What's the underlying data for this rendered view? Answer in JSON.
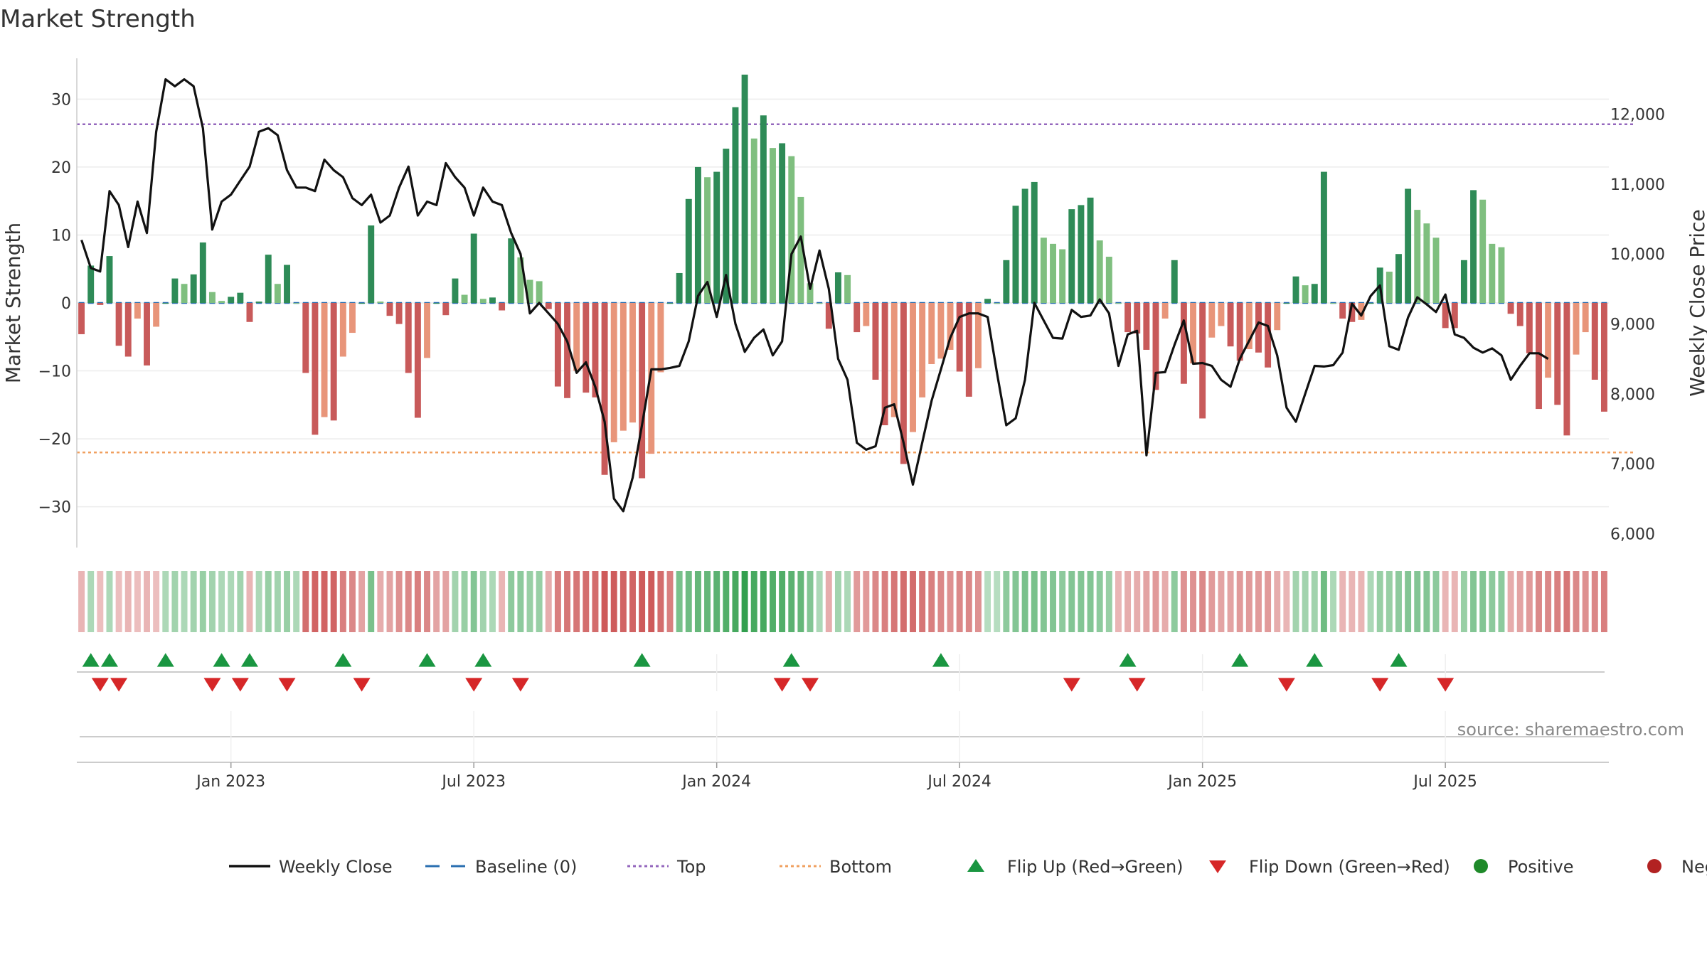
{
  "chart_data": {
    "type": "bar",
    "title": "Market Strength",
    "ylabel_left": "Market Strength",
    "ylabel_right": "Weekly Close Price",
    "source": "source: sharemaestro.com",
    "ylim_left": [
      -36,
      36
    ],
    "ylim_right": [
      5800,
      12800
    ],
    "yticks_left": [
      30,
      20,
      10,
      0,
      -10,
      -20,
      -30
    ],
    "ytick_labels_left": [
      "30",
      "20",
      "10",
      "0",
      "−10",
      "−20",
      "−30"
    ],
    "yticks_right": [
      12000,
      11000,
      10000,
      9000,
      8000,
      7000,
      6000
    ],
    "ytick_labels_right": [
      "12,000",
      "11,000",
      "10,000",
      "9,000",
      "8,000",
      "7,000",
      "6,000"
    ],
    "top_line": 26.3,
    "bottom_line": -22,
    "x_tick_labels": [
      {
        "week": 16,
        "label": "Jan 2023"
      },
      {
        "week": 42,
        "label": "Jul 2023"
      },
      {
        "week": 68,
        "label": "Jan 2024"
      },
      {
        "week": 94,
        "label": "Jul 2024"
      },
      {
        "week": 120,
        "label": "Jan 2025"
      },
      {
        "week": 146,
        "label": "Jul 2025"
      }
    ],
    "series": [
      {
        "name": "Market Strength",
        "values": [
          -4.6,
          5.5,
          -0.3,
          6.9,
          -6.3,
          -7.9,
          -2.3,
          -9.2,
          -3.5,
          0,
          3.6,
          2.8,
          4.2,
          8.9,
          1.6,
          0.3,
          0.9,
          1.5,
          -2.8,
          0.2,
          7.1,
          2.8,
          5.6,
          0,
          -10.3,
          -19.4,
          -16.8,
          -17.3,
          -7.9,
          -4.4,
          0,
          11.4,
          0.2,
          -1.9,
          -3.1,
          -10.3,
          -16.9,
          -8.1,
          0,
          -1.8,
          3.6,
          1.2,
          10.2,
          0.6,
          0.8,
          -1.1,
          9.5,
          6.7,
          3.4,
          3.2,
          -0.9,
          -12.3,
          -14,
          -10,
          -13.2,
          -13.9,
          -25.3,
          -20.5,
          -18.8,
          -17.6,
          -25.8,
          -22.2,
          -10.2,
          0,
          4.4,
          15.3,
          20,
          18.5,
          19.3,
          22.7,
          28.8,
          33.6,
          24.2,
          27.6,
          22.8,
          23.5,
          21.6,
          15.6,
          2.9,
          0,
          -3.8,
          4.5,
          4.1,
          -4.3,
          -3.4,
          -11.3,
          -18,
          -16.8,
          -23.7,
          -19,
          -13.9,
          -9,
          -8.2,
          -6.9,
          -10.1,
          -13.8,
          -9.6,
          0.6,
          0,
          6.3,
          14.3,
          16.8,
          17.8,
          9.6,
          8.7,
          7.9,
          13.8,
          14.4,
          15.5,
          9.2,
          6.8,
          0,
          -4.3,
          -4.5,
          -6.9,
          -12.8,
          -2.3,
          6.3,
          -11.9,
          -8.9,
          -17,
          -5.1,
          -3.4,
          -6.4,
          -8.5,
          -6.8,
          -7.3,
          -9.5,
          -4,
          0,
          3.9,
          2.6,
          2.8,
          19.3,
          0,
          -2.3,
          -2.8,
          -2.5,
          0,
          5.2,
          4.6,
          7.2,
          16.8,
          13.7,
          11.7,
          9.6,
          -3.7,
          -3.7,
          6.3,
          16.6,
          15.2,
          8.7,
          8.2,
          -1.6,
          -3.4,
          -7.4,
          -15.6,
          -11,
          -15,
          -19.5,
          -7.6,
          -4.3,
          -11.3,
          -16
        ]
      },
      {
        "name": "Weekly Close",
        "values": [
          10200,
          9800,
          9750,
          10900,
          10700,
          10100,
          10750,
          10300,
          11750,
          12500,
          12400,
          12500,
          12400,
          11800,
          10350,
          10750,
          10850,
          11050,
          11250,
          11750,
          11800,
          11700,
          11200,
          10950,
          10950,
          10900,
          11350,
          11200,
          11100,
          10800,
          10700,
          10850,
          10450,
          10550,
          10950,
          11250,
          10550,
          10750,
          10700,
          11300,
          11100,
          10950,
          10550,
          10950,
          10750,
          10700,
          10300,
          10000,
          9150,
          9300,
          9150,
          9000,
          8750,
          8300,
          8450,
          8100,
          7600,
          6500,
          6320,
          6800,
          7550,
          8350,
          8350,
          8370,
          8400,
          8750,
          9400,
          9600,
          9100,
          9700,
          9000,
          8600,
          8800,
          8920,
          8550,
          8750,
          10000,
          10250,
          9500,
          10050,
          9500,
          8500,
          8200,
          7300,
          7200,
          7250,
          7800,
          7850,
          7300,
          6700,
          7300,
          7900,
          8350,
          8800,
          9100,
          9150,
          9150,
          9100,
          8300,
          7550,
          7650,
          8200,
          9300,
          9050,
          8800,
          8790,
          9200,
          9100,
          9120,
          9350,
          9150,
          8400,
          8850,
          8900,
          7120,
          8300,
          8310,
          8700,
          9050,
          8430,
          8440,
          8400,
          8200,
          8100,
          8500,
          8760,
          9020,
          8970,
          8550,
          7800,
          7600,
          8000,
          8400,
          8390,
          8410,
          8590,
          9290,
          9120,
          9400,
          9550,
          8680,
          8630,
          9090,
          9380,
          9280,
          9170,
          9420,
          8850,
          8800,
          8660,
          8590,
          8650,
          8550,
          8200,
          8400,
          8580,
          8580,
          8500
        ]
      }
    ],
    "regime_strip": [
      -0.3,
      0.3,
      -0.25,
      0.3,
      -0.25,
      -0.3,
      -0.25,
      -0.3,
      -0.25,
      0.3,
      0.35,
      0.3,
      0.35,
      0.4,
      0.35,
      0.3,
      0.3,
      0.35,
      -0.3,
      0.3,
      0.4,
      0.35,
      0.4,
      0.3,
      -0.7,
      -0.75,
      -0.75,
      -0.75,
      -0.6,
      -0.55,
      -0.4,
      0.55,
      -0.35,
      -0.4,
      -0.5,
      -0.55,
      -0.6,
      -0.55,
      -0.4,
      -0.4,
      0.35,
      0.4,
      0.5,
      0.35,
      0.3,
      -0.3,
      0.45,
      0.45,
      0.4,
      0.4,
      -0.35,
      -0.6,
      -0.65,
      -0.65,
      -0.7,
      -0.7,
      -0.8,
      -0.8,
      -0.75,
      -0.75,
      -0.8,
      -0.8,
      -0.7,
      -0.6,
      0.55,
      0.6,
      0.65,
      0.65,
      0.7,
      0.75,
      0.8,
      0.9,
      0.8,
      0.8,
      0.75,
      0.75,
      0.7,
      0.65,
      0.5,
      0.3,
      -0.35,
      0.35,
      0.3,
      -0.45,
      -0.45,
      -0.55,
      -0.6,
      -0.65,
      -0.7,
      -0.7,
      -0.65,
      -0.6,
      -0.55,
      -0.5,
      -0.55,
      -0.55,
      -0.5,
      0.25,
      0.25,
      0.45,
      0.5,
      0.55,
      0.55,
      0.5,
      0.5,
      0.45,
      0.5,
      0.5,
      0.5,
      0.45,
      0.4,
      -0.3,
      -0.35,
      -0.35,
      -0.4,
      -0.45,
      -0.35,
      0.45,
      -0.5,
      -0.5,
      -0.55,
      -0.45,
      -0.4,
      -0.4,
      -0.45,
      -0.45,
      -0.45,
      -0.45,
      -0.35,
      -0.3,
      0.35,
      0.35,
      0.35,
      0.6,
      0.3,
      -0.3,
      -0.3,
      -0.3,
      0.3,
      0.4,
      0.4,
      0.45,
      0.5,
      0.5,
      0.5,
      0.45,
      -0.3,
      -0.3,
      0.4,
      0.5,
      0.5,
      0.45,
      0.45,
      -0.35,
      -0.4,
      -0.45,
      -0.55,
      -0.55,
      -0.6,
      -0.65,
      -0.55,
      -0.5,
      -0.55,
      -0.6
    ],
    "flip_up_weeks": [
      1,
      3,
      9,
      15,
      18,
      28,
      37,
      43,
      60,
      76,
      92,
      112,
      124,
      132,
      141
    ],
    "flip_down_weeks": [
      2,
      4,
      14,
      17,
      22,
      30,
      42,
      47,
      75,
      78,
      106,
      113,
      129,
      139,
      146
    ],
    "legend": [
      {
        "key": "weekly_close",
        "label": "Weekly Close",
        "color": "#111111"
      },
      {
        "key": "baseline",
        "label": "Baseline (0)",
        "color": "#2a6fb0"
      },
      {
        "key": "top",
        "label": "Top",
        "color": "#9467bd"
      },
      {
        "key": "bottom",
        "label": "Bottom",
        "color": "#f0a060"
      },
      {
        "key": "flip_up",
        "label": "Flip Up (Red→Green)",
        "color": "#1a9641"
      },
      {
        "key": "flip_down",
        "label": "Flip Down (Green→Red)",
        "color": "#d62728"
      },
      {
        "key": "positive",
        "label": "Positive",
        "color": "#1f8a2a"
      },
      {
        "key": "negative",
        "label": "Negative",
        "color": "#b22222"
      }
    ]
  },
  "colors": {
    "dark_green": "#2e8b57",
    "light_green": "#7fbf7f",
    "dark_red": "#c85a5a",
    "light_red": "#e8957a",
    "price_line": "#111111",
    "baseline": "#2a6fb0",
    "top_line": "#9467bd",
    "bottom_line": "#f0a060",
    "grid": "#ececec",
    "axis": "#cccccc"
  }
}
